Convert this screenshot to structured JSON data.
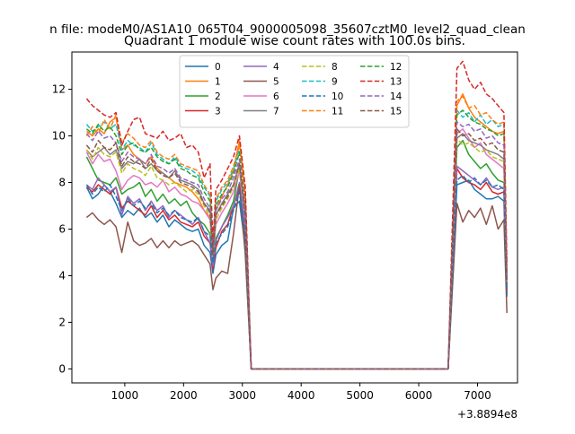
{
  "chart_data": {
    "type": "line",
    "suptitle": "n file: modeM0/AS1A10_065T04_9000005098_35607cztM0_level2_quad_clean",
    "title": "Quadrant 1 module wise count rates with 100.0s bins.",
    "xlabel": "",
    "ylabel": "",
    "x_offset_label": "+3.8894e8",
    "xlim": [
      100,
      7680
    ],
    "ylim": [
      -0.6,
      13.6
    ],
    "xticks": [
      1000,
      2000,
      3000,
      4000,
      5000,
      6000,
      7000
    ],
    "yticks": [
      0,
      2,
      4,
      6,
      8,
      10,
      12
    ],
    "grid": false,
    "legend_position": "top-center",
    "legend_columns": 4,
    "x": [
      350,
      450,
      550,
      650,
      750,
      850,
      950,
      1050,
      1150,
      1250,
      1350,
      1450,
      1550,
      1650,
      1750,
      1850,
      1950,
      2050,
      2150,
      2250,
      2350,
      2450,
      2500,
      2550,
      2650,
      2750,
      2850,
      2950,
      3050,
      3150,
      3250,
      6500,
      6650,
      6750,
      6850,
      6950,
      7050,
      7150,
      7250,
      7350,
      7450,
      7500
    ],
    "series": [
      {
        "name": "0",
        "color": "#1f77b4",
        "style": "solid",
        "values": [
          7.8,
          7.3,
          7.5,
          7.9,
          7.6,
          7.1,
          6.5,
          6.8,
          6.6,
          6.9,
          6.5,
          6.7,
          6.3,
          6.6,
          6.1,
          6.4,
          6.2,
          6.0,
          5.9,
          6.0,
          5.3,
          5.0,
          4.1,
          4.9,
          5.3,
          5.5,
          6.9,
          7.2,
          5.2,
          0.0,
          0.0,
          0.0,
          7.9,
          8.0,
          8.1,
          7.7,
          7.5,
          7.3,
          7.3,
          7.4,
          7.2,
          3.1
        ]
      },
      {
        "name": "1",
        "color": "#ff7f0e",
        "style": "solid",
        "values": [
          10.2,
          10.0,
          10.3,
          10.1,
          10.6,
          10.8,
          9.4,
          9.6,
          9.2,
          9.0,
          8.8,
          9.1,
          8.6,
          8.4,
          8.2,
          8.0,
          7.9,
          7.8,
          7.6,
          7.3,
          6.8,
          6.5,
          4.5,
          6.8,
          7.4,
          7.9,
          8.5,
          9.8,
          7.5,
          0.0,
          0.0,
          0.0,
          11.3,
          11.8,
          11.2,
          10.8,
          10.6,
          10.4,
          10.2,
          10.1,
          10.2,
          4.2
        ]
      },
      {
        "name": "2",
        "color": "#2ca02c",
        "style": "solid",
        "values": [
          9.1,
          8.6,
          8.1,
          8.0,
          7.9,
          8.2,
          7.5,
          7.7,
          7.8,
          8.0,
          7.4,
          7.7,
          7.2,
          7.5,
          7.1,
          7.3,
          7.0,
          7.2,
          6.7,
          6.4,
          6.2,
          5.8,
          4.4,
          5.6,
          6.1,
          6.6,
          7.2,
          8.6,
          6.2,
          0.0,
          0.0,
          0.0,
          9.5,
          9.8,
          9.2,
          8.9,
          8.6,
          8.8,
          8.4,
          8.1,
          8.0,
          3.6
        ]
      },
      {
        "name": "3",
        "color": "#d62728",
        "style": "solid",
        "values": [
          7.8,
          7.6,
          7.9,
          7.7,
          7.5,
          7.8,
          6.9,
          7.2,
          7.0,
          6.8,
          6.6,
          7.0,
          6.5,
          6.8,
          6.4,
          6.6,
          6.3,
          6.2,
          6.1,
          6.3,
          5.7,
          5.4,
          4.3,
          5.2,
          5.9,
          6.2,
          7.0,
          7.8,
          5.6,
          0.0,
          0.0,
          0.0,
          8.6,
          8.2,
          8.0,
          7.9,
          7.7,
          8.0,
          7.6,
          7.5,
          7.6,
          3.4
        ]
      },
      {
        "name": "4",
        "color": "#9467bd",
        "style": "solid",
        "values": [
          7.9,
          7.7,
          8.2,
          7.9,
          7.6,
          7.8,
          6.6,
          7.4,
          7.1,
          7.3,
          6.8,
          7.2,
          6.8,
          7.0,
          6.5,
          6.8,
          6.6,
          6.4,
          6.2,
          6.5,
          5.9,
          5.4,
          4.4,
          5.5,
          6.1,
          6.5,
          7.0,
          8.0,
          5.9,
          0.0,
          0.0,
          0.0,
          8.7,
          8.5,
          8.3,
          8.1,
          7.9,
          8.2,
          7.8,
          7.7,
          7.8,
          3.5
        ]
      },
      {
        "name": "5",
        "color": "#8c564b",
        "style": "solid",
        "values": [
          6.5,
          6.7,
          6.4,
          6.2,
          6.4,
          6.1,
          5.0,
          6.3,
          5.5,
          5.3,
          5.4,
          5.6,
          5.2,
          5.5,
          5.2,
          5.5,
          5.3,
          5.4,
          5.5,
          5.3,
          4.9,
          4.5,
          3.4,
          3.9,
          4.2,
          4.1,
          5.8,
          7.9,
          4.9,
          0.0,
          0.0,
          0.0,
          7.1,
          6.3,
          6.8,
          6.5,
          6.9,
          6.2,
          7.0,
          6.0,
          6.4,
          2.4
        ]
      },
      {
        "name": "6",
        "color": "#e377c2",
        "style": "solid",
        "values": [
          9.3,
          8.8,
          9.2,
          8.9,
          9.0,
          8.5,
          7.7,
          8.1,
          8.3,
          8.2,
          7.9,
          8.0,
          7.8,
          8.1,
          7.6,
          7.8,
          7.5,
          7.4,
          7.2,
          7.1,
          6.8,
          6.4,
          4.8,
          6.2,
          6.7,
          7.1,
          7.6,
          8.5,
          6.4,
          0.0,
          0.0,
          0.0,
          10.1,
          10.3,
          9.9,
          9.5,
          9.7,
          9.2,
          9.0,
          8.8,
          8.6,
          3.8
        ]
      },
      {
        "name": "7",
        "color": "#7f7f7f",
        "style": "solid",
        "values": [
          9.4,
          9.1,
          9.3,
          9.5,
          9.2,
          9.4,
          8.6,
          8.9,
          8.8,
          9.0,
          8.6,
          8.8,
          8.5,
          8.4,
          8.2,
          8.5,
          8.1,
          8.0,
          7.9,
          7.7,
          7.1,
          6.8,
          5.0,
          6.6,
          7.1,
          7.5,
          7.9,
          8.8,
          6.6,
          0.0,
          0.0,
          0.0,
          9.9,
          10.1,
          9.8,
          9.7,
          9.6,
          9.4,
          9.3,
          9.2,
          9.0,
          3.9
        ]
      },
      {
        "name": "8",
        "color": "#bcbd22",
        "style": "dashed",
        "values": [
          9.4,
          9.0,
          9.5,
          9.2,
          9.1,
          9.3,
          8.4,
          8.8,
          8.6,
          8.5,
          8.3,
          8.7,
          8.2,
          8.1,
          7.9,
          8.0,
          7.8,
          7.6,
          7.7,
          7.5,
          7.0,
          6.5,
          4.7,
          6.4,
          6.9,
          7.3,
          7.8,
          8.6,
          6.5,
          0.0,
          0.0,
          0.0,
          9.9,
          9.6,
          9.7,
          9.5,
          9.3,
          9.4,
          9.1,
          9.0,
          8.9,
          3.7
        ]
      },
      {
        "name": "9",
        "color": "#17becf",
        "style": "dashed",
        "values": [
          10.5,
          10.2,
          10.4,
          10.6,
          10.3,
          10.5,
          9.4,
          9.8,
          9.6,
          9.5,
          9.3,
          9.7,
          9.2,
          9.0,
          8.8,
          9.1,
          8.7,
          8.6,
          8.5,
          8.3,
          7.8,
          7.4,
          5.3,
          7.2,
          7.7,
          8.0,
          8.6,
          9.4,
          7.0,
          0.0,
          0.0,
          0.0,
          11.1,
          10.8,
          11.0,
          10.6,
          10.9,
          10.5,
          10.7,
          10.4,
          10.5,
          4.0
        ]
      },
      {
        "name": "10",
        "color": "#1f77b4",
        "style": "dashed",
        "values": [
          7.9,
          7.5,
          7.8,
          7.6,
          7.9,
          7.4,
          6.8,
          7.3,
          7.0,
          7.2,
          6.9,
          7.1,
          6.7,
          6.9,
          6.6,
          6.8,
          6.5,
          6.4,
          6.3,
          6.5,
          5.9,
          5.7,
          4.6,
          5.4,
          5.8,
          6.1,
          6.8,
          7.6,
          5.7,
          0.0,
          0.0,
          0.0,
          8.1,
          8.3,
          8.0,
          8.2,
          7.9,
          8.1,
          7.8,
          7.9,
          7.7,
          3.2
        ]
      },
      {
        "name": "11",
        "color": "#ff7f0e",
        "style": "dashed",
        "values": [
          10.0,
          10.4,
          10.1,
          10.7,
          10.3,
          10.9,
          9.7,
          10.1,
          9.9,
          9.6,
          9.5,
          9.8,
          9.3,
          9.1,
          9.0,
          9.2,
          8.8,
          8.7,
          8.6,
          8.5,
          7.9,
          7.5,
          5.4,
          7.3,
          7.8,
          8.1,
          8.7,
          9.6,
          7.1,
          0.0,
          0.0,
          0.0,
          11.5,
          11.7,
          11.2,
          11.3,
          10.9,
          11.0,
          10.7,
          10.5,
          10.6,
          4.3
        ]
      },
      {
        "name": "12",
        "color": "#2ca02c",
        "style": "dashed",
        "values": [
          10.3,
          10.1,
          10.5,
          10.2,
          10.4,
          10.0,
          9.2,
          9.6,
          9.7,
          9.4,
          9.3,
          9.5,
          9.1,
          8.9,
          8.8,
          9.0,
          8.6,
          8.5,
          8.3,
          8.2,
          7.6,
          7.2,
          5.1,
          7.0,
          7.5,
          7.8,
          8.4,
          9.3,
          6.9,
          0.0,
          0.0,
          0.0,
          10.9,
          11.1,
          10.8,
          10.6,
          10.5,
          10.3,
          10.2,
          10.0,
          10.1,
          3.9
        ]
      },
      {
        "name": "13",
        "color": "#d62728",
        "style": "dashed",
        "values": [
          11.6,
          11.3,
          11.1,
          10.9,
          10.8,
          11.0,
          9.6,
          10.2,
          10.7,
          10.8,
          10.1,
          10.0,
          9.9,
          10.2,
          9.8,
          9.9,
          10.1,
          9.5,
          9.6,
          9.3,
          8.2,
          8.8,
          5.4,
          7.7,
          8.1,
          8.6,
          9.1,
          10.0,
          7.8,
          0.0,
          0.0,
          0.0,
          12.9,
          13.2,
          12.4,
          12.0,
          12.3,
          11.8,
          11.6,
          11.3,
          11.0,
          4.6
        ]
      },
      {
        "name": "14",
        "color": "#9467bd",
        "style": "dashed",
        "values": [
          10.1,
          9.8,
          10.2,
          9.9,
          10.0,
          9.7,
          8.9,
          9.3,
          9.1,
          9.0,
          8.8,
          9.2,
          8.7,
          8.6,
          8.4,
          8.6,
          8.2,
          8.1,
          8.0,
          7.9,
          7.3,
          6.9,
          5.0,
          6.8,
          7.3,
          7.6,
          8.2,
          9.0,
          6.7,
          0.0,
          0.0,
          0.0,
          10.6,
          10.4,
          10.5,
          10.2,
          10.3,
          9.9,
          10.0,
          9.7,
          9.6,
          3.8
        ]
      },
      {
        "name": "15",
        "color": "#8c564b",
        "style": "dashed",
        "values": [
          9.6,
          9.3,
          9.8,
          9.5,
          9.4,
          9.7,
          8.7,
          9.1,
          8.9,
          8.8,
          8.6,
          9.0,
          8.5,
          8.3,
          8.2,
          8.4,
          8.0,
          7.9,
          7.8,
          7.6,
          7.1,
          6.7,
          4.9,
          6.6,
          7.0,
          7.4,
          7.9,
          8.8,
          6.5,
          0.0,
          0.0,
          0.0,
          10.3,
          10.0,
          10.1,
          9.8,
          9.9,
          9.6,
          9.7,
          9.4,
          9.3,
          3.7
        ]
      }
    ]
  }
}
